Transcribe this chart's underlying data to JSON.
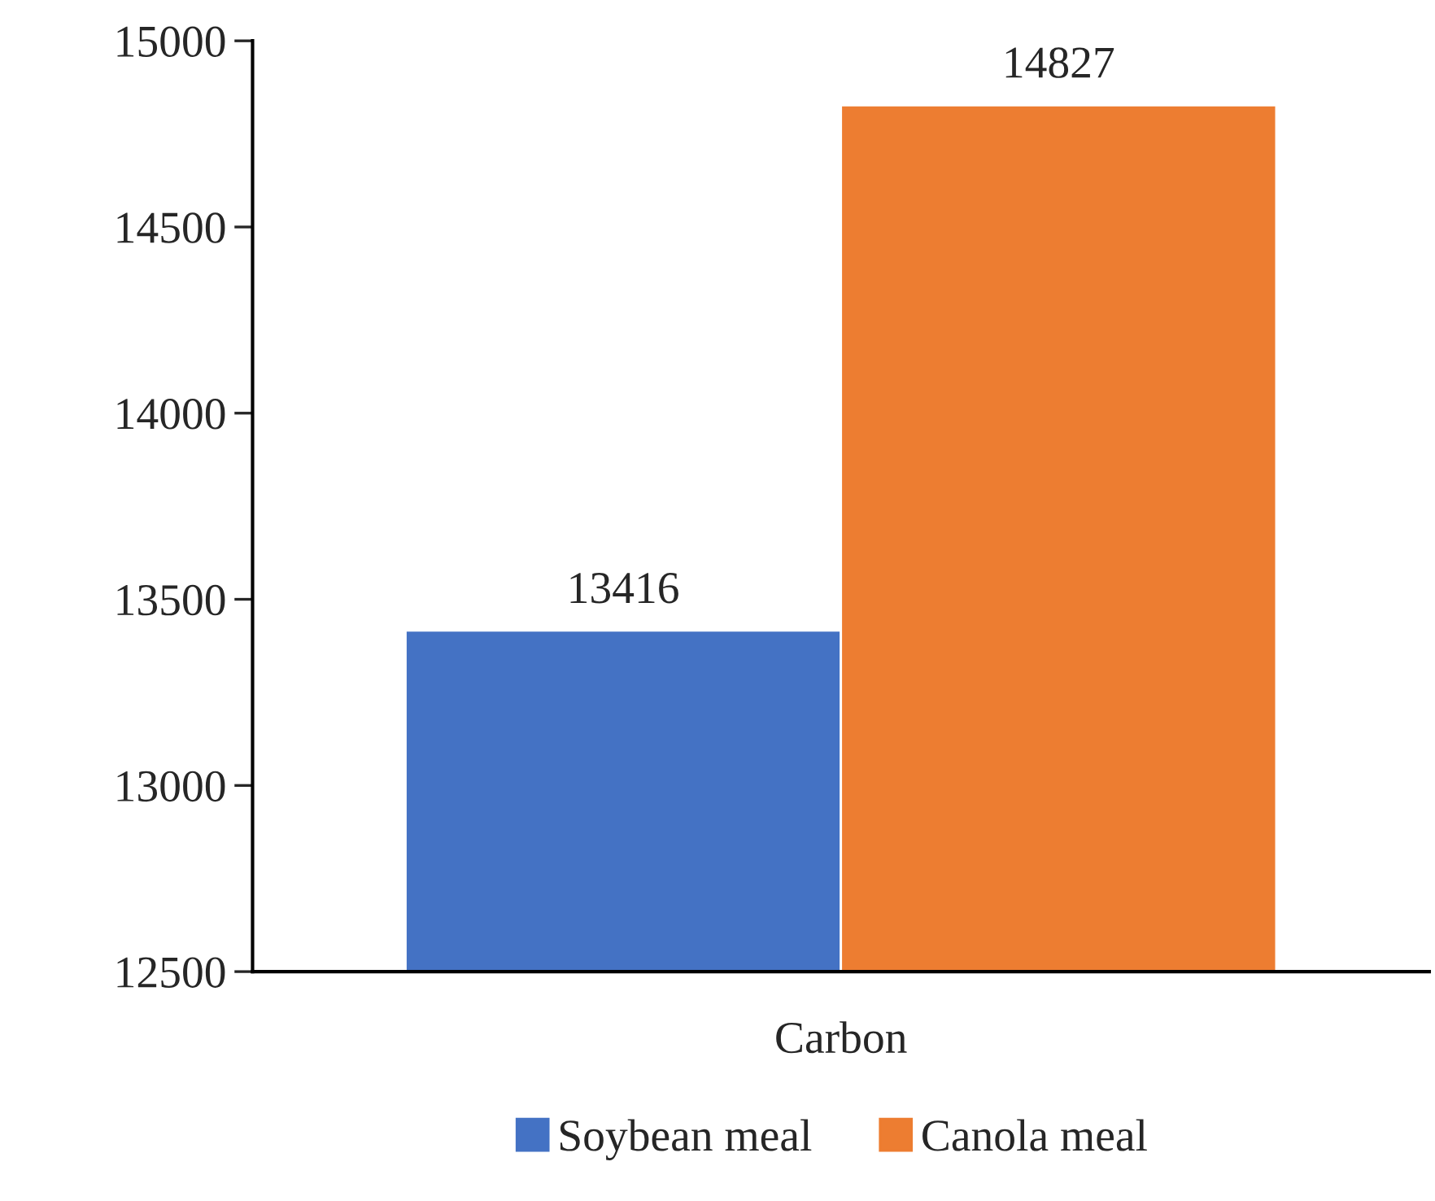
{
  "chart_data": {
    "type": "bar",
    "categories": [
      "Carbon"
    ],
    "series": [
      {
        "name": "Soybean meal",
        "color": "#4472c4",
        "values": [
          13416
        ]
      },
      {
        "name": "Canola meal",
        "color": "#ed7d31",
        "values": [
          14827
        ]
      }
    ],
    "ylim": [
      12500,
      15000
    ],
    "yticks": [
      12500,
      13000,
      13500,
      14000,
      14500,
      15000
    ],
    "data_labels": true,
    "grid": false,
    "legend": "bottom"
  }
}
